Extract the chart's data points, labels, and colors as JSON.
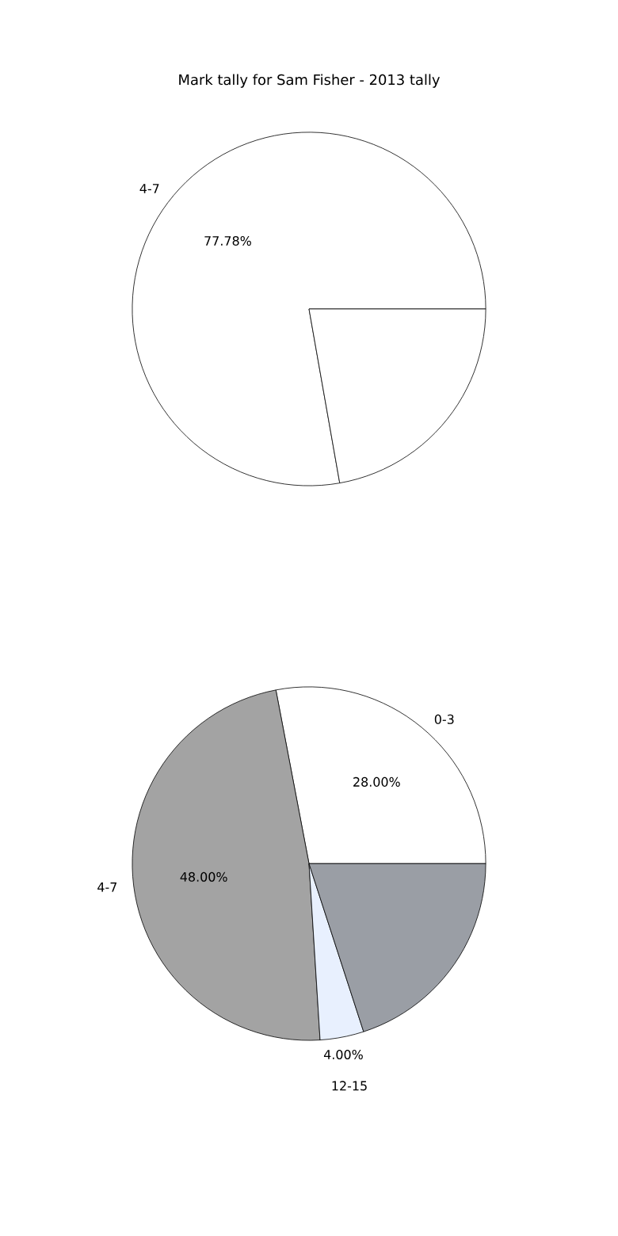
{
  "chart_data": [
    {
      "type": "pie",
      "title": "Mark tally for Sam Fisher - 2013 tally",
      "categories": [
        "4-7",
        null
      ],
      "values": [
        77.78,
        22.22
      ],
      "colors": [
        "#ffffff",
        "#ffffff"
      ],
      "value_labels": [
        "77.78%",
        null
      ]
    },
    {
      "type": "pie",
      "categories": [
        "0-3",
        "4-7",
        "12-15",
        null
      ],
      "values": [
        28,
        48,
        4,
        20
      ],
      "colors": [
        "#ffffff",
        "#a3a3a3",
        "#e8f0fe",
        "#9a9ea5"
      ],
      "value_labels": [
        "28.00%",
        "48.00%",
        "4.00%",
        null
      ]
    }
  ]
}
